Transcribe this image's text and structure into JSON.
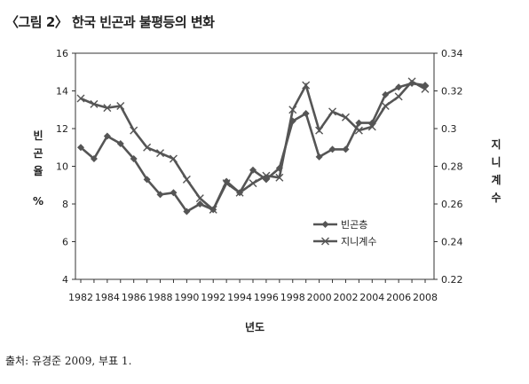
{
  "figure": {
    "title": "〈그림 2〉 한국 빈곤과 불평등의 변화",
    "source": "출처: 유경준 2009, 부표 1."
  },
  "chart_data": {
    "type": "line",
    "x": [
      1982,
      1983,
      1984,
      1985,
      1986,
      1987,
      1988,
      1989,
      1990,
      1991,
      1992,
      1993,
      1994,
      1995,
      1996,
      1997,
      1998,
      1999,
      2000,
      2001,
      2002,
      2003,
      2004,
      2005,
      2006,
      2007,
      2008
    ],
    "x_tick_labels": [
      "1982",
      "1984",
      "1986",
      "1988",
      "1990",
      "1992",
      "1994",
      "1996",
      "1998",
      "2000",
      "2002",
      "2004",
      "2006",
      "2008"
    ],
    "xlabel": "년도",
    "ylabel_left": "빈곤율 %",
    "ylabel_left_lines": [
      "빈",
      "곤",
      "율",
      "%"
    ],
    "ylabel_right": "지니계수",
    "ylabel_right_chars": [
      "지",
      "니",
      "계",
      "수"
    ],
    "ylim_left": [
      4,
      16
    ],
    "yticks_left": [
      4,
      6,
      8,
      10,
      12,
      14,
      16
    ],
    "ylim_right": [
      0.22,
      0.34
    ],
    "yticks_right": [
      "0.22",
      "0.24",
      "0.26",
      "0.28",
      "0.3",
      "0.32",
      "0.34"
    ],
    "series": [
      {
        "name": "빈곤층",
        "axis": "left",
        "marker": "diamond",
        "color": "#555555",
        "values": [
          11.0,
          10.4,
          11.6,
          11.2,
          10.4,
          9.3,
          8.5,
          8.6,
          7.6,
          8.0,
          7.7,
          9.2,
          8.6,
          9.8,
          9.3,
          9.9,
          12.4,
          12.8,
          10.5,
          10.9,
          10.9,
          12.3,
          12.3,
          13.8,
          14.2,
          14.4,
          14.3
        ]
      },
      {
        "name": "지니계수",
        "axis": "right",
        "marker": "x",
        "color": "#555555",
        "values": [
          0.316,
          0.313,
          0.311,
          0.312,
          0.299,
          0.29,
          0.287,
          0.284,
          0.273,
          0.263,
          0.257,
          0.271,
          0.266,
          0.271,
          0.275,
          0.274,
          0.31,
          0.323,
          0.299,
          0.309,
          0.306,
          0.299,
          0.301,
          0.312,
          0.317,
          0.325,
          0.321
        ]
      }
    ],
    "legend_position": "right-middle inside plot",
    "grid": false
  }
}
